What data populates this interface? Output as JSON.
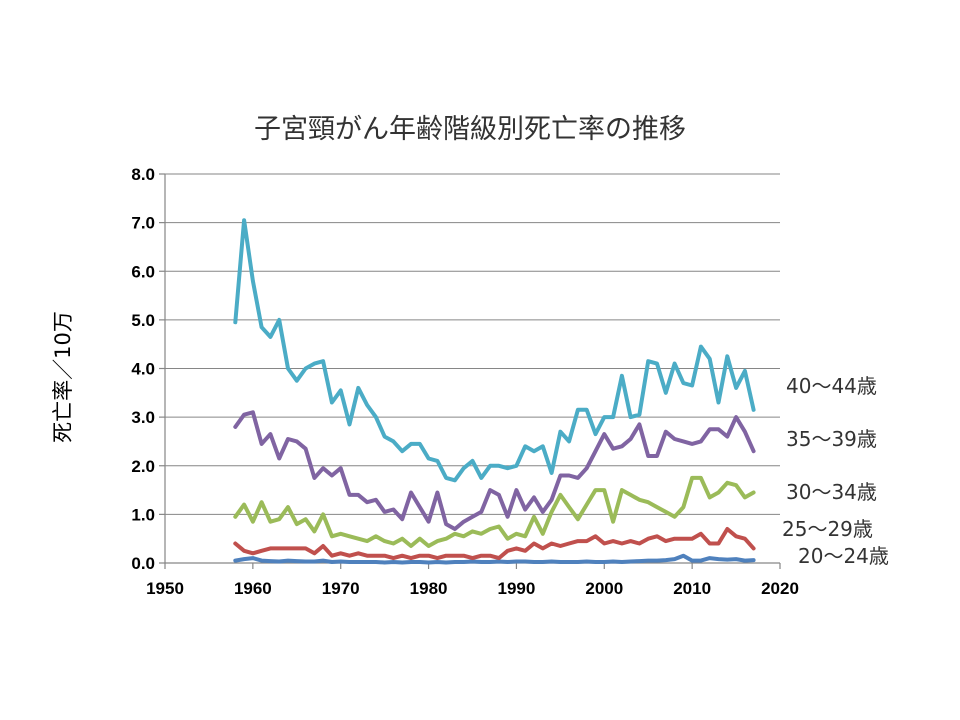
{
  "chart_data": {
    "type": "line",
    "title": "子宮頸がん年齢階級別死亡率の推移",
    "ylabel": "死亡率／10万",
    "xlabel": "",
    "xlim": [
      1950,
      2020
    ],
    "ylim": [
      0,
      8
    ],
    "xticks": [
      "1950",
      "1960",
      "1970",
      "1980",
      "1990",
      "2000",
      "2010",
      "2020"
    ],
    "yticks": [
      "0.0",
      "1.0",
      "2.0",
      "3.0",
      "4.0",
      "5.0",
      "6.0",
      "7.0",
      "8.0"
    ],
    "grid": "horizontal",
    "legend": "inline-right",
    "x": [
      1958,
      1959,
      1960,
      1961,
      1962,
      1963,
      1964,
      1965,
      1966,
      1967,
      1968,
      1969,
      1970,
      1971,
      1972,
      1973,
      1974,
      1975,
      1976,
      1977,
      1978,
      1979,
      1980,
      1981,
      1982,
      1983,
      1984,
      1985,
      1986,
      1987,
      1988,
      1989,
      1990,
      1991,
      1992,
      1993,
      1994,
      1995,
      1996,
      1997,
      1998,
      1999,
      2000,
      2001,
      2002,
      2003,
      2004,
      2005,
      2006,
      2007,
      2008,
      2009,
      2010,
      2011,
      2012,
      2013,
      2014,
      2015,
      2016,
      2017
    ],
    "series": [
      {
        "name": "40～44歳",
        "color": "#4bacc6",
        "values": [
          4.95,
          7.05,
          5.8,
          4.85,
          4.65,
          5.0,
          4.0,
          3.75,
          4.0,
          4.1,
          4.15,
          3.3,
          3.55,
          2.85,
          3.6,
          3.25,
          3.0,
          2.6,
          2.5,
          2.3,
          2.45,
          2.45,
          2.15,
          2.1,
          1.75,
          1.7,
          1.95,
          2.1,
          1.75,
          2.0,
          2.0,
          1.95,
          2.0,
          2.4,
          2.3,
          2.4,
          1.85,
          2.7,
          2.5,
          3.15,
          3.15,
          2.65,
          3.0,
          3.0,
          3.85,
          3.0,
          3.05,
          4.15,
          4.1,
          3.5,
          4.1,
          3.7,
          3.65,
          4.45,
          4.2,
          3.3,
          4.25,
          3.6,
          3.95,
          3.15
        ]
      },
      {
        "name": "35～39歳",
        "color": "#8064a2",
        "values": [
          2.8,
          3.05,
          3.1,
          2.45,
          2.65,
          2.15,
          2.55,
          2.5,
          2.35,
          1.75,
          1.95,
          1.8,
          1.95,
          1.4,
          1.4,
          1.25,
          1.3,
          1.05,
          1.1,
          0.9,
          1.45,
          1.15,
          0.85,
          1.45,
          0.8,
          0.7,
          0.85,
          0.95,
          1.05,
          1.5,
          1.4,
          0.95,
          1.5,
          1.1,
          1.35,
          1.05,
          1.3,
          1.8,
          1.8,
          1.75,
          1.95,
          2.3,
          2.65,
          2.35,
          2.4,
          2.55,
          2.85,
          2.2,
          2.2,
          2.7,
          2.55,
          2.5,
          2.45,
          2.5,
          2.75,
          2.75,
          2.6,
          3.0,
          2.7,
          2.3
        ]
      },
      {
        "name": "30～34歳",
        "color": "#9bbb59",
        "values": [
          0.95,
          1.2,
          0.85,
          1.25,
          0.85,
          0.9,
          1.15,
          0.8,
          0.9,
          0.65,
          1.0,
          0.55,
          0.6,
          0.55,
          0.5,
          0.45,
          0.55,
          0.45,
          0.4,
          0.5,
          0.35,
          0.5,
          0.35,
          0.45,
          0.5,
          0.6,
          0.55,
          0.65,
          0.6,
          0.7,
          0.75,
          0.5,
          0.6,
          0.55,
          0.95,
          0.6,
          1.05,
          1.4,
          1.15,
          0.9,
          1.2,
          1.5,
          1.5,
          0.85,
          1.5,
          1.4,
          1.3,
          1.25,
          1.15,
          1.05,
          0.95,
          1.15,
          1.75,
          1.75,
          1.35,
          1.45,
          1.65,
          1.6,
          1.35,
          1.45
        ]
      },
      {
        "name": "25～29歳",
        "color": "#c0504d",
        "values": [
          0.4,
          0.25,
          0.2,
          0.25,
          0.3,
          0.3,
          0.3,
          0.3,
          0.3,
          0.2,
          0.35,
          0.15,
          0.2,
          0.15,
          0.2,
          0.15,
          0.15,
          0.15,
          0.1,
          0.15,
          0.1,
          0.15,
          0.15,
          0.1,
          0.15,
          0.15,
          0.15,
          0.1,
          0.15,
          0.15,
          0.1,
          0.25,
          0.3,
          0.25,
          0.4,
          0.3,
          0.4,
          0.35,
          0.4,
          0.45,
          0.45,
          0.55,
          0.4,
          0.45,
          0.4,
          0.45,
          0.4,
          0.5,
          0.55,
          0.45,
          0.5,
          0.5,
          0.5,
          0.6,
          0.4,
          0.4,
          0.7,
          0.55,
          0.5,
          0.3
        ]
      },
      {
        "name": "20～24歳",
        "color": "#4f81bd",
        "values": [
          0.05,
          0.08,
          0.1,
          0.05,
          0.04,
          0.03,
          0.05,
          0.04,
          0.03,
          0.03,
          0.05,
          0.02,
          0.03,
          0.02,
          0.02,
          0.02,
          0.02,
          0.01,
          0.02,
          0.01,
          0.02,
          0.02,
          0.01,
          0.02,
          0.01,
          0.02,
          0.02,
          0.03,
          0.02,
          0.02,
          0.03,
          0.02,
          0.03,
          0.03,
          0.02,
          0.02,
          0.03,
          0.02,
          0.02,
          0.02,
          0.03,
          0.02,
          0.02,
          0.03,
          0.02,
          0.03,
          0.04,
          0.05,
          0.05,
          0.06,
          0.08,
          0.15,
          0.05,
          0.05,
          0.1,
          0.08,
          0.07,
          0.08,
          0.05,
          0.06
        ]
      }
    ]
  }
}
